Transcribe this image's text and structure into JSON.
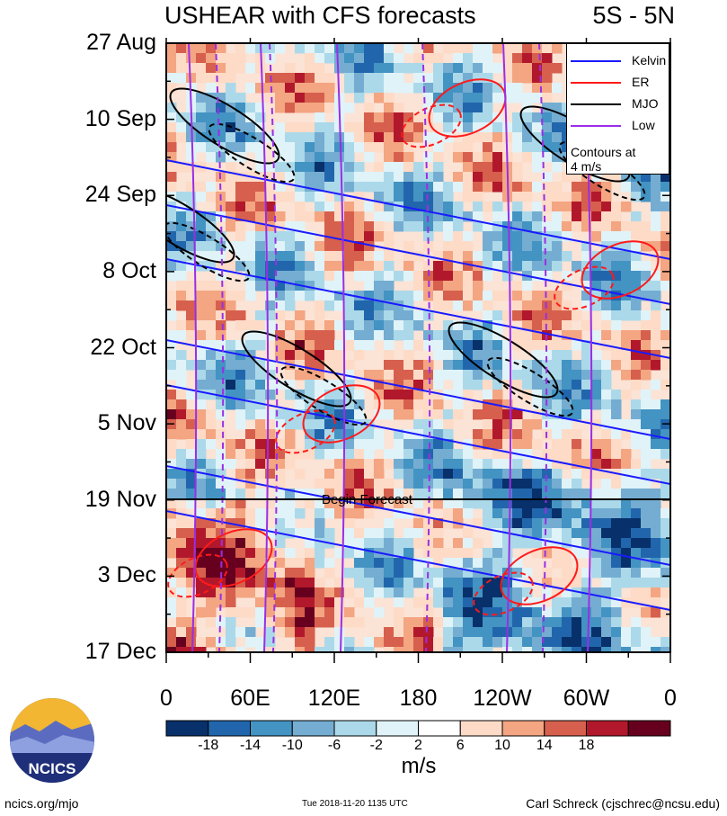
{
  "title": "USHEAR with CFS forecasts",
  "region": "5S - 5N",
  "legend": {
    "items": [
      {
        "label": "Kelvin",
        "color": "#1a1aff"
      },
      {
        "label": "ER",
        "color": "#ff1a1a"
      },
      {
        "label": "MJO",
        "color": "#000000"
      },
      {
        "label": "Low",
        "color": "#9a2ee6"
      }
    ],
    "note_line1": "Contours at",
    "note_line2": "4 m/s"
  },
  "forecast_label": "Begin Forecast",
  "units": "m/s",
  "footer": {
    "left": "ncics.org/mjo",
    "middle": "Tue 2018-11-20 1135 UTC",
    "right": "Carl Schreck (cjschrec@ncsu.edu)"
  },
  "logo_text": "NCICS",
  "chart_data": {
    "type": "heatmap",
    "title": "USHEAR with CFS forecasts",
    "subtitle": "5S - 5N",
    "y_ticks": [
      "27 Aug",
      "10 Sep",
      "24 Sep",
      "8 Oct",
      "22 Oct",
      "5 Nov",
      "19 Nov",
      "3 Dec",
      "17 Dec"
    ],
    "x_ticks": [
      "0",
      "60E",
      "120E",
      "180",
      "120W",
      "60W",
      "0"
    ],
    "x_range_deg_east": [
      0,
      360
    ],
    "forecast_start": "19 Nov",
    "colorbar": {
      "labels": [
        "-18",
        "-14",
        "-10",
        "-6",
        "-2",
        "2",
        "6",
        "10",
        "14",
        "18"
      ],
      "colors": [
        "#08306b",
        "#2166ac",
        "#4393c3",
        "#74add1",
        "#abd9e9",
        "#e0f3f8",
        "#ffffff",
        "#fddbc7",
        "#f4a582",
        "#d6604d",
        "#b2182b",
        "#67001f"
      ],
      "units": "m/s"
    },
    "contour_interval": "4 m/s",
    "series": [
      {
        "name": "Kelvin",
        "color": "#1a1aff"
      },
      {
        "name": "ER",
        "color": "#ff1a1a"
      },
      {
        "name": "MJO",
        "color": "#000000"
      },
      {
        "name": "Low",
        "color": "#9a2ee6"
      }
    ]
  }
}
